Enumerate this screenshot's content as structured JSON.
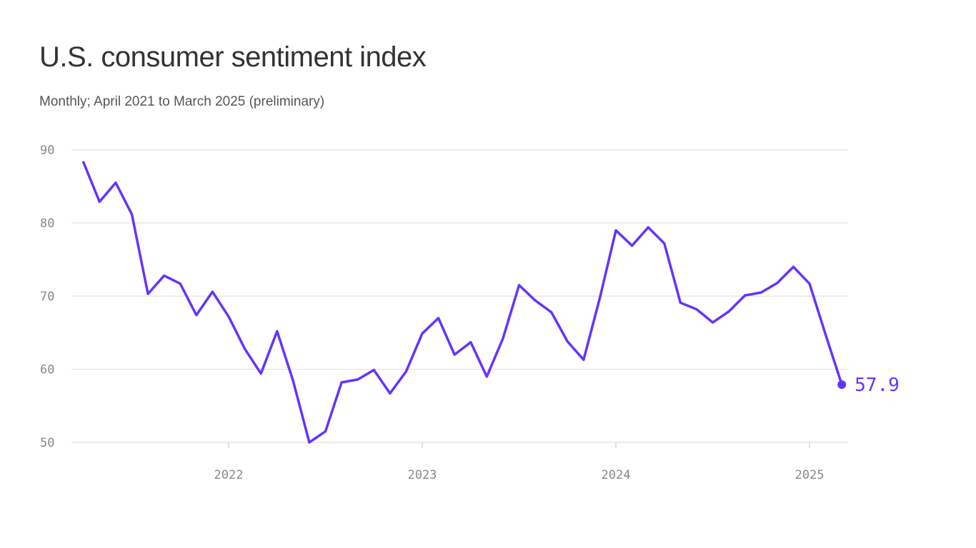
{
  "chart_data": {
    "type": "line",
    "title": "U.S. consumer sentiment index",
    "subtitle": "Monthly; April 2021 to March 2025 (preliminary)",
    "xlabel": "",
    "ylabel": "",
    "ylim": [
      50,
      90
    ],
    "yticks": [
      50,
      60,
      70,
      80,
      90
    ],
    "xticks": [
      "2022",
      "2023",
      "2024",
      "2025"
    ],
    "grid": "horizontal",
    "color": "#6633ff",
    "start": "2021-04",
    "end_label": "57.9",
    "x": [
      "2021-04",
      "2021-05",
      "2021-06",
      "2021-07",
      "2021-08",
      "2021-09",
      "2021-10",
      "2021-11",
      "2021-12",
      "2022-01",
      "2022-02",
      "2022-03",
      "2022-04",
      "2022-05",
      "2022-06",
      "2022-07",
      "2022-08",
      "2022-09",
      "2022-10",
      "2022-11",
      "2022-12",
      "2023-01",
      "2023-02",
      "2023-03",
      "2023-04",
      "2023-05",
      "2023-06",
      "2023-07",
      "2023-08",
      "2023-09",
      "2023-10",
      "2023-11",
      "2023-12",
      "2024-01",
      "2024-02",
      "2024-03",
      "2024-04",
      "2024-05",
      "2024-06",
      "2024-07",
      "2024-08",
      "2024-09",
      "2024-10",
      "2024-11",
      "2024-12",
      "2025-01",
      "2025-02",
      "2025-03"
    ],
    "values": [
      88.3,
      82.9,
      85.5,
      81.2,
      70.3,
      72.8,
      71.7,
      67.4,
      70.6,
      67.2,
      62.8,
      59.4,
      65.2,
      58.4,
      50.0,
      51.5,
      58.2,
      58.6,
      59.9,
      56.7,
      59.7,
      64.9,
      67.0,
      62.0,
      63.7,
      59.0,
      64.2,
      71.5,
      69.4,
      67.8,
      63.8,
      61.3,
      69.7,
      79.0,
      76.9,
      79.4,
      77.2,
      69.1,
      68.2,
      66.4,
      67.9,
      70.1,
      70.5,
      71.8,
      74.0,
      71.7,
      64.7,
      57.9
    ]
  }
}
